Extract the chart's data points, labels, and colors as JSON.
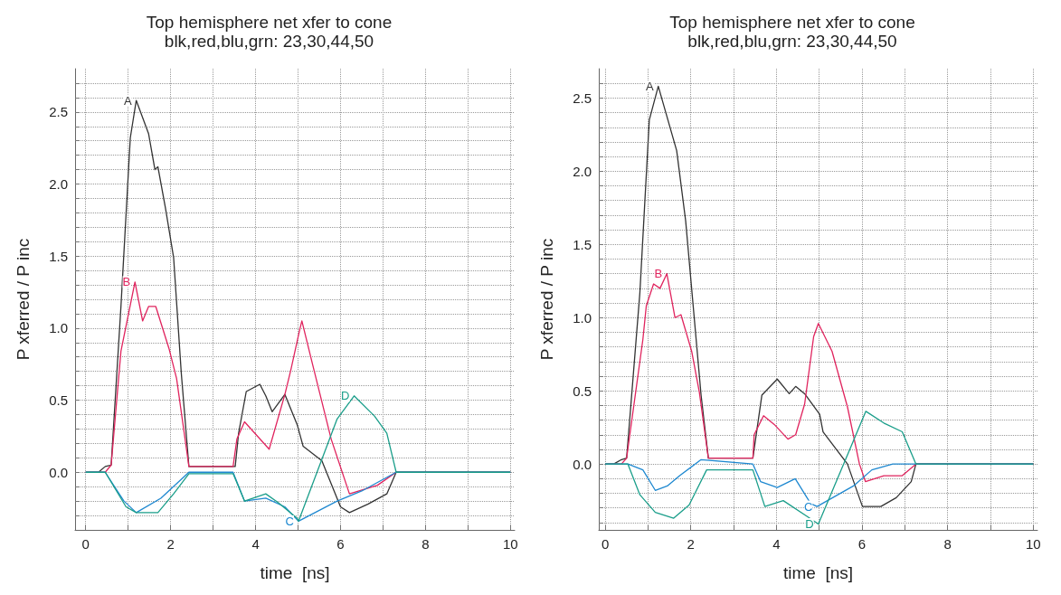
{
  "chart_data": [
    {
      "type": "line",
      "title": "Top hemisphere net xfer to cone",
      "subtitle": "blk,red,blu,grn: 23,30,44,50",
      "xlabel": "time  [ns]",
      "ylabel": "P xferred / P inc",
      "xlim": [
        -0.25,
        10.1
      ],
      "ylim": [
        -0.4,
        2.8
      ],
      "grid": true,
      "legend": false,
      "xticks": [
        0,
        {
          "value": 1,
          "label": null
        },
        2,
        {
          "value": 3,
          "label": null
        },
        4,
        {
          "value": 5,
          "label": null
        },
        6,
        {
          "value": 7,
          "label": null
        },
        8,
        {
          "value": 9,
          "label": null
        },
        10
      ],
      "yticks": [
        {
          "value": -0.3,
          "label": null
        },
        {
          "value": -0.2,
          "label": null
        },
        {
          "value": -0.1,
          "label": null
        },
        {
          "value": 0,
          "label": "0.0"
        },
        {
          "value": 0.1,
          "label": null
        },
        {
          "value": 0.2,
          "label": null
        },
        {
          "value": 0.3,
          "label": null
        },
        {
          "value": 0.4,
          "label": null
        },
        {
          "value": 0.5,
          "label": "0.5"
        },
        {
          "value": 0.6,
          "label": null
        },
        {
          "value": 0.7,
          "label": null
        },
        {
          "value": 0.8,
          "label": null
        },
        {
          "value": 0.9,
          "label": null
        },
        {
          "value": 1,
          "label": "1.0"
        },
        {
          "value": 1.1,
          "label": null
        },
        {
          "value": 1.2,
          "label": null
        },
        {
          "value": 1.3,
          "label": null
        },
        {
          "value": 1.4,
          "label": null
        },
        {
          "value": 1.5,
          "label": "1.5"
        },
        {
          "value": 1.6,
          "label": null
        },
        {
          "value": 1.7,
          "label": null
        },
        {
          "value": 1.8,
          "label": null
        },
        {
          "value": 1.9,
          "label": null
        },
        {
          "value": 2,
          "label": "2.0"
        },
        {
          "value": 2.1,
          "label": null
        },
        {
          "value": 2.2,
          "label": null
        },
        {
          "value": 2.3,
          "label": null
        },
        {
          "value": 2.4,
          "label": null
        },
        {
          "value": 2.5,
          "label": "2.5"
        },
        {
          "value": 2.6,
          "label": null
        },
        {
          "value": 2.7,
          "label": null
        }
      ],
      "series": [
        {
          "name": "A",
          "color": "#333333",
          "x": [
            0,
            0.3,
            0.46,
            0.6,
            0.83,
            1.05,
            1.19,
            1.48,
            1.63,
            1.7,
            1.88,
            2.07,
            2.25,
            2.43,
            3.52,
            3.6,
            3.78,
            4.1,
            4.24,
            4.39,
            4.69,
            4.98,
            5.12,
            5.56,
            6.0,
            6.21,
            6.65,
            7.09,
            7.31,
            10
          ],
          "values": [
            0,
            0,
            0.04,
            0.05,
            1.15,
            2.32,
            2.58,
            2.35,
            2.1,
            2.12,
            1.83,
            1.49,
            0.69,
            0.04,
            0.04,
            0.27,
            0.56,
            0.61,
            0.53,
            0.42,
            0.54,
            0.33,
            0.18,
            0.08,
            -0.24,
            -0.28,
            -0.22,
            -0.15,
            0,
            0
          ]
        },
        {
          "name": "B",
          "color": "#e0245e",
          "x": [
            0,
            0.46,
            0.6,
            0.83,
            1.16,
            1.34,
            1.48,
            1.65,
            1.96,
            2.14,
            2.43,
            3.47,
            3.56,
            3.74,
            4.32,
            4.69,
            4.83,
            5.04,
            5.09,
            5.34,
            5.78,
            6.21,
            6.87,
            7.31,
            10
          ],
          "values": [
            0,
            0,
            0.05,
            0.84,
            1.32,
            1.05,
            1.15,
            1.15,
            0.86,
            0.65,
            0.04,
            0.04,
            0.23,
            0.35,
            0.16,
            0.54,
            0.71,
            0.99,
            1.05,
            0.75,
            0.23,
            -0.15,
            -0.09,
            0,
            0
          ]
        },
        {
          "name": "C",
          "color": "#1e88d0",
          "x": [
            0,
            0.46,
            0.9,
            1.19,
            1.77,
            2.43,
            3.47,
            3.74,
            4.24,
            4.69,
            4.98,
            5.01,
            5.92,
            6.5,
            7.31,
            10
          ],
          "values": [
            0,
            0,
            -0.2,
            -0.28,
            -0.18,
            0,
            0,
            -0.2,
            -0.18,
            -0.24,
            -0.33,
            -0.34,
            -0.2,
            -0.13,
            0,
            0
          ]
        },
        {
          "name": "D",
          "color": "#1a9e8a",
          "x": [
            0,
            0.46,
            0.95,
            1.19,
            1.7,
            2.07,
            2.43,
            3.47,
            3.74,
            4.24,
            4.53,
            4.98,
            5.01,
            5.92,
            6.32,
            6.8,
            7.09,
            7.31,
            10
          ],
          "values": [
            0,
            0,
            -0.24,
            -0.28,
            -0.28,
            -0.15,
            -0.01,
            -0.01,
            -0.2,
            -0.15,
            -0.21,
            -0.32,
            -0.34,
            0.37,
            0.53,
            0.39,
            0.27,
            0,
            0
          ]
        }
      ]
    },
    {
      "type": "line",
      "title": "Top hemisphere net xfer to cone",
      "subtitle": "blk,red,blu,grn: 23,30,44,50",
      "xlabel": "time  [ns]",
      "ylabel": "P xferred / P inc",
      "xlim": [
        -0.15,
        10.1
      ],
      "ylim": [
        -0.45,
        2.7
      ],
      "grid": true,
      "legend": false,
      "xticks": [
        0,
        {
          "value": 1,
          "label": null
        },
        2,
        {
          "value": 3,
          "label": null
        },
        4,
        {
          "value": 5,
          "label": null
        },
        6,
        {
          "value": 7,
          "label": null
        },
        8,
        {
          "value": 9,
          "label": null
        },
        10
      ],
      "yticks": [
        {
          "value": -0.4,
          "label": null
        },
        {
          "value": -0.3,
          "label": null
        },
        {
          "value": -0.2,
          "label": null
        },
        {
          "value": -0.1,
          "label": null
        },
        {
          "value": 0,
          "label": "0.0"
        },
        {
          "value": 0.1,
          "label": null
        },
        {
          "value": 0.2,
          "label": null
        },
        {
          "value": 0.3,
          "label": null
        },
        {
          "value": 0.4,
          "label": null
        },
        {
          "value": 0.5,
          "label": "0.5"
        },
        {
          "value": 0.6,
          "label": null
        },
        {
          "value": 0.7,
          "label": null
        },
        {
          "value": 0.8,
          "label": null
        },
        {
          "value": 0.9,
          "label": null
        },
        {
          "value": 1,
          "label": "1.0"
        },
        {
          "value": 1.1,
          "label": null
        },
        {
          "value": 1.2,
          "label": null
        },
        {
          "value": 1.3,
          "label": null
        },
        {
          "value": 1.4,
          "label": null
        },
        {
          "value": 1.5,
          "label": "1.5"
        },
        {
          "value": 1.6,
          "label": null
        },
        {
          "value": 1.7,
          "label": null
        },
        {
          "value": 1.8,
          "label": null
        },
        {
          "value": 1.9,
          "label": null
        },
        {
          "value": 2,
          "label": "2.0"
        },
        {
          "value": 2.1,
          "label": null
        },
        {
          "value": 2.2,
          "label": null
        },
        {
          "value": 2.3,
          "label": null
        },
        {
          "value": 2.4,
          "label": null
        },
        {
          "value": 2.5,
          "label": "2.5"
        },
        {
          "value": 2.6,
          "label": null
        }
      ],
      "series": [
        {
          "name": "A",
          "color": "#333333",
          "x": [
            0,
            0.2,
            0.38,
            0.5,
            0.81,
            1.03,
            1.24,
            1.67,
            1.88,
            2.24,
            2.41,
            3.45,
            3.66,
            4.02,
            4.3,
            4.45,
            4.66,
            5.01,
            5.09,
            5.66,
            6.01,
            6.44,
            6.8,
            7.15,
            7.26,
            10
          ],
          "values": [
            0,
            0,
            0.03,
            0.04,
            1.17,
            2.35,
            2.58,
            2.14,
            1.66,
            0.47,
            0.04,
            0.04,
            0.47,
            0.58,
            0.48,
            0.53,
            0.48,
            0.34,
            0.22,
            0,
            -0.29,
            -0.29,
            -0.23,
            -0.12,
            0,
            0
          ]
        },
        {
          "name": "B",
          "color": "#e0245e",
          "x": [
            0,
            0.38,
            0.5,
            0.88,
            0.96,
            1.13,
            1.28,
            1.44,
            1.63,
            1.77,
            2.02,
            2.2,
            2.41,
            3.45,
            3.48,
            3.7,
            3.95,
            4.27,
            4.45,
            4.66,
            4.87,
            4.98,
            5.3,
            5.66,
            5.94,
            6.08,
            6.51,
            6.94,
            7.26,
            10
          ],
          "values": [
            0,
            0,
            0.04,
            0.85,
            1.08,
            1.23,
            1.2,
            1.3,
            1.0,
            1.02,
            0.77,
            0.49,
            0.04,
            0.04,
            0.2,
            0.33,
            0.27,
            0.17,
            0.2,
            0.41,
            0.87,
            0.96,
            0.77,
            0.39,
            0,
            -0.12,
            -0.08,
            -0.08,
            0,
            0
          ]
        },
        {
          "name": "C",
          "color": "#1e88d0",
          "x": [
            0,
            0.53,
            0.88,
            1.17,
            1.45,
            1.74,
            2.24,
            3.45,
            3.63,
            4.02,
            4.44,
            4.8,
            4.95,
            5.8,
            6.23,
            6.72,
            7.26,
            10
          ],
          "values": [
            0,
            0,
            -0.04,
            -0.18,
            -0.15,
            -0.08,
            0.03,
            0,
            -0.12,
            -0.16,
            -0.1,
            -0.27,
            -0.29,
            -0.15,
            -0.04,
            0,
            0,
            0
          ]
        },
        {
          "name": "D",
          "color": "#1a9e8a",
          "x": [
            0,
            0.53,
            0.81,
            1.17,
            1.6,
            1.96,
            2.37,
            3.45,
            3.73,
            4.16,
            4.73,
            4.98,
            6.09,
            6.51,
            6.94,
            7.26,
            10
          ],
          "values": [
            0,
            0,
            -0.21,
            -0.33,
            -0.37,
            -0.28,
            -0.04,
            -0.04,
            -0.29,
            -0.25,
            -0.36,
            -0.41,
            0.36,
            0.28,
            0.22,
            0,
            0
          ]
        }
      ]
    }
  ]
}
